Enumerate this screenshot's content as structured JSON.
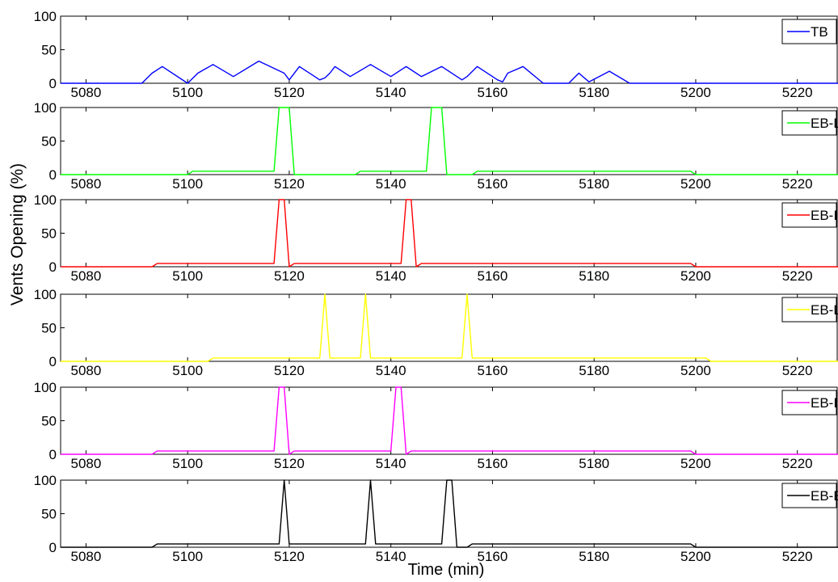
{
  "figure": {
    "ylabel": "Vents Opening  (%)",
    "xlabel": "Time (min)"
  },
  "chart_data": [
    {
      "type": "line",
      "title": "",
      "xlim": [
        5075,
        5228
      ],
      "ylim": [
        0,
        100
      ],
      "xticks": [
        5080,
        5100,
        5120,
        5140,
        5160,
        5180,
        5200,
        5220
      ],
      "yticks": [
        0,
        50,
        100
      ],
      "legend_position": "top-right",
      "grid": false,
      "series": [
        {
          "name": "TB",
          "color": "#0000ff",
          "x": [
            5075,
            5091,
            5093,
            5095,
            5100,
            5102,
            5105,
            5109,
            5114,
            5119,
            5120,
            5122,
            5126,
            5127,
            5128,
            5129,
            5130,
            5132,
            5136,
            5140,
            5143,
            5146,
            5150,
            5154,
            5155,
            5157,
            5160,
            5161,
            5162,
            5163,
            5166,
            5170,
            5175,
            5177,
            5179,
            5181,
            5183,
            5187,
            5228
          ],
          "y": [
            0,
            0,
            15,
            25,
            0,
            15,
            28,
            10,
            33,
            15,
            5,
            25,
            5,
            8,
            15,
            25,
            20,
            10,
            28,
            10,
            25,
            10,
            25,
            5,
            10,
            25,
            10,
            5,
            2,
            15,
            25,
            0,
            0,
            15,
            2,
            10,
            18,
            0,
            0
          ]
        }
      ]
    },
    {
      "type": "line",
      "xlim": [
        5075,
        5228
      ],
      "ylim": [
        0,
        100
      ],
      "xticks": [
        5080,
        5100,
        5120,
        5140,
        5160,
        5180,
        5200,
        5220
      ],
      "yticks": [
        0,
        50,
        100
      ],
      "legend_position": "top-right",
      "grid": false,
      "series": [
        {
          "name": "EB-LC",
          "color": "#00ff00",
          "x": [
            5075,
            5100,
            5101,
            5117,
            5118,
            5120,
            5121,
            5133,
            5134,
            5147,
            5148,
            5150,
            5151,
            5156,
            5157,
            5199,
            5200,
            5228
          ],
          "y": [
            0,
            0,
            5,
            5,
            100,
            100,
            0,
            0,
            5,
            5,
            100,
            100,
            0,
            0,
            5,
            5,
            0,
            0
          ]
        }
      ]
    },
    {
      "type": "line",
      "xlim": [
        5075,
        5228
      ],
      "ylim": [
        0,
        100
      ],
      "xticks": [
        5080,
        5100,
        5120,
        5140,
        5160,
        5180,
        5200,
        5220
      ],
      "yticks": [
        0,
        50,
        100
      ],
      "legend_position": "top-right",
      "grid": false,
      "series": [
        {
          "name": "EB-ILC",
          "color": "#ff0000",
          "x": [
            5075,
            5093,
            5094,
            5117,
            5118,
            5119,
            5120,
            5121,
            5142,
            5143,
            5144,
            5145,
            5146,
            5199,
            5200,
            5228
          ],
          "y": [
            0,
            0,
            5,
            5,
            100,
            100,
            0,
            5,
            5,
            100,
            100,
            0,
            5,
            5,
            0,
            0
          ]
        }
      ]
    },
    {
      "type": "line",
      "xlim": [
        5075,
        5228
      ],
      "ylim": [
        0,
        100
      ],
      "xticks": [
        5080,
        5100,
        5120,
        5140,
        5160,
        5180,
        5200,
        5220
      ],
      "yticks": [
        0,
        50,
        100
      ],
      "legend_position": "top-right",
      "grid": false,
      "series": [
        {
          "name": "EB-LP",
          "color": "#ffff00",
          "x": [
            5075,
            5104,
            5105,
            5126,
            5127,
            5128,
            5134,
            5135,
            5136,
            5154,
            5155,
            5156,
            5202,
            5203,
            5228
          ],
          "y": [
            0,
            0,
            5,
            5,
            100,
            5,
            5,
            100,
            5,
            5,
            100,
            5,
            5,
            0,
            0
          ]
        }
      ]
    },
    {
      "type": "line",
      "xlim": [
        5075,
        5228
      ],
      "ylim": [
        0,
        100
      ],
      "xticks": [
        5080,
        5100,
        5120,
        5140,
        5160,
        5180,
        5200,
        5220
      ],
      "yticks": [
        0,
        50,
        100
      ],
      "legend_position": "top-right",
      "grid": false,
      "series": [
        {
          "name": "EB-ILP",
          "color": "#ff00ff",
          "x": [
            5075,
            5093,
            5094,
            5117,
            5118,
            5119,
            5120,
            5121,
            5140,
            5141,
            5142,
            5143,
            5144,
            5199,
            5200,
            5228
          ],
          "y": [
            0,
            0,
            5,
            5,
            100,
            100,
            0,
            5,
            5,
            100,
            100,
            0,
            5,
            5,
            0,
            0
          ]
        }
      ]
    },
    {
      "type": "line",
      "xlim": [
        5075,
        5228
      ],
      "ylim": [
        0,
        100
      ],
      "xticks": [
        5080,
        5100,
        5120,
        5140,
        5160,
        5180,
        5200,
        5220
      ],
      "yticks": [
        0,
        50,
        100
      ],
      "legend_position": "top-right",
      "grid": false,
      "series": [
        {
          "name": "EB-EN",
          "color": "#000000",
          "x": [
            5075,
            5093,
            5094,
            5118,
            5119,
            5120,
            5135,
            5136,
            5137,
            5150,
            5151,
            5152,
            5153,
            5155,
            5156,
            5199,
            5200,
            5228
          ],
          "y": [
            0,
            0,
            5,
            5,
            100,
            5,
            5,
            100,
            5,
            5,
            100,
            100,
            0,
            0,
            5,
            5,
            0,
            0
          ]
        }
      ]
    }
  ]
}
